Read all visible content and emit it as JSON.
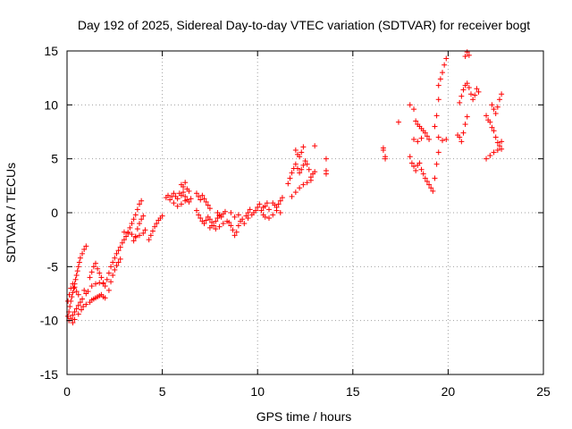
{
  "chart_data": {
    "type": "scatter",
    "title": "Day 192 of 2025, Sidereal Day-to-day VTEC variation (SDTVAR) for receiver bogt",
    "xlabel": "GPS time / hours",
    "ylabel": "SDTVAR / TECUs",
    "xlim": [
      0,
      25
    ],
    "ylim": [
      -15,
      15
    ],
    "x_ticks": [
      0,
      5,
      10,
      15,
      20,
      25
    ],
    "y_ticks": [
      -15,
      -10,
      -5,
      0,
      5,
      10,
      15
    ],
    "x_tick_labels": [
      "0",
      "5",
      "10",
      "15",
      "20",
      "25"
    ],
    "y_tick_labels": [
      "-15",
      "-10",
      "-5",
      "0",
      "5",
      "10",
      "15"
    ],
    "grid": true,
    "marker": "plus",
    "color": "#ff0000",
    "series": [
      {
        "name": "",
        "points": [
          [
            0.05,
            -9.6
          ],
          [
            0.1,
            -9.2
          ],
          [
            0.15,
            -8.7
          ],
          [
            0.2,
            -8.2
          ],
          [
            0.25,
            -7.8
          ],
          [
            0.3,
            -7.4
          ],
          [
            0.35,
            -7.0
          ],
          [
            0.4,
            -6.6
          ],
          [
            0.45,
            -6.2
          ],
          [
            0.5,
            -5.8
          ],
          [
            0.55,
            -5.4
          ],
          [
            0.6,
            -5.0
          ],
          [
            0.65,
            -4.6
          ],
          [
            0.7,
            -4.2
          ],
          [
            0.8,
            -3.8
          ],
          [
            0.9,
            -3.4
          ],
          [
            1.0,
            -3.1
          ],
          [
            0.1,
            -10.0
          ],
          [
            0.2,
            -9.8
          ],
          [
            0.3,
            -9.5
          ],
          [
            0.4,
            -9.2
          ],
          [
            0.5,
            -8.9
          ],
          [
            0.6,
            -8.6
          ],
          [
            0.7,
            -8.3
          ],
          [
            0.8,
            -8.0
          ],
          [
            0.05,
            -8.2
          ],
          [
            0.12,
            -7.6
          ],
          [
            0.2,
            -7.0
          ],
          [
            0.3,
            -6.6
          ],
          [
            0.4,
            -6.9
          ],
          [
            0.5,
            -7.3
          ],
          [
            0.6,
            -7.6
          ],
          [
            0.3,
            -10.2
          ],
          [
            0.4,
            -9.9
          ],
          [
            0.6,
            -9.4
          ],
          [
            0.75,
            -9.0
          ],
          [
            0.85,
            -8.7
          ],
          [
            1.0,
            -8.5
          ],
          [
            0.9,
            -7.2
          ],
          [
            1.0,
            -7.5
          ],
          [
            1.1,
            -7.3
          ],
          [
            1.2,
            -6.0
          ],
          [
            1.3,
            -5.5
          ],
          [
            1.4,
            -5.0
          ],
          [
            1.5,
            -4.7
          ],
          [
            1.6,
            -5.2
          ],
          [
            1.7,
            -5.6
          ],
          [
            1.8,
            -6.0
          ],
          [
            1.9,
            -6.5
          ],
          [
            2.0,
            -6.8
          ],
          [
            1.2,
            -8.3
          ],
          [
            1.3,
            -8.1
          ],
          [
            1.4,
            -8.0
          ],
          [
            1.5,
            -7.9
          ],
          [
            1.6,
            -7.8
          ],
          [
            1.7,
            -7.7
          ],
          [
            1.8,
            -7.6
          ],
          [
            1.9,
            -7.8
          ],
          [
            2.0,
            -7.9
          ],
          [
            1.3,
            -6.8
          ],
          [
            1.5,
            -6.6
          ],
          [
            1.7,
            -6.5
          ],
          [
            1.9,
            -6.6
          ],
          [
            2.1,
            -6.2
          ],
          [
            2.2,
            -5.6
          ],
          [
            2.3,
            -5.0
          ],
          [
            2.4,
            -4.6
          ],
          [
            2.5,
            -4.2
          ],
          [
            2.6,
            -3.8
          ],
          [
            2.7,
            -3.5
          ],
          [
            2.8,
            -3.2
          ],
          [
            2.9,
            -2.8
          ],
          [
            2.2,
            -7.2
          ],
          [
            2.3,
            -6.4
          ],
          [
            2.4,
            -5.8
          ],
          [
            2.5,
            -5.3
          ],
          [
            2.6,
            -4.9
          ],
          [
            2.7,
            -4.6
          ],
          [
            2.8,
            -4.3
          ],
          [
            3.0,
            -2.5
          ],
          [
            3.1,
            -2.2
          ],
          [
            3.2,
            -1.8
          ],
          [
            3.3,
            -1.4
          ],
          [
            3.4,
            -1.0
          ],
          [
            3.5,
            -0.6
          ],
          [
            3.6,
            -0.2
          ],
          [
            3.7,
            0.3
          ],
          [
            3.8,
            0.8
          ],
          [
            3.9,
            1.1
          ],
          [
            3.0,
            -1.8
          ],
          [
            3.2,
            -1.9
          ],
          [
            3.4,
            -2.0
          ],
          [
            3.6,
            -2.2
          ],
          [
            3.8,
            -2.1
          ],
          [
            4.0,
            -1.9
          ],
          [
            4.1,
            -1.6
          ],
          [
            3.5,
            -2.6
          ],
          [
            3.6,
            -2.3
          ],
          [
            3.7,
            -1.5
          ],
          [
            3.8,
            -1.0
          ],
          [
            3.9,
            -0.6
          ],
          [
            4.0,
            -0.3
          ],
          [
            4.3,
            -2.5
          ],
          [
            4.4,
            -2.1
          ],
          [
            4.5,
            -1.7
          ],
          [
            4.6,
            -1.3
          ],
          [
            4.7,
            -1.0
          ],
          [
            4.8,
            -0.7
          ],
          [
            4.9,
            -0.5
          ],
          [
            5.0,
            -0.3
          ],
          [
            5.2,
            1.4
          ],
          [
            5.3,
            1.6
          ],
          [
            5.4,
            1.2
          ],
          [
            5.5,
            1.5
          ],
          [
            5.6,
            1.8
          ],
          [
            5.7,
            1.5
          ],
          [
            5.8,
            1.3
          ],
          [
            5.9,
            1.8
          ],
          [
            6.0,
            1.6
          ],
          [
            6.1,
            1.9
          ],
          [
            6.2,
            1.5
          ],
          [
            6.3,
            1.2
          ],
          [
            6.4,
            1.0
          ],
          [
            6.5,
            1.3
          ],
          [
            5.6,
            0.9
          ],
          [
            5.8,
            0.6
          ],
          [
            6.0,
            0.8
          ],
          [
            6.2,
            1.1
          ],
          [
            6.0,
            2.6
          ],
          [
            6.1,
            2.4
          ],
          [
            6.2,
            2.8
          ],
          [
            6.3,
            2.2
          ],
          [
            6.4,
            2.0
          ],
          [
            6.8,
            1.8
          ],
          [
            6.9,
            1.5
          ],
          [
            7.0,
            1.2
          ],
          [
            7.1,
            1.6
          ],
          [
            7.2,
            1.3
          ],
          [
            7.3,
            1.0
          ],
          [
            7.4,
            0.7
          ],
          [
            7.5,
            0.4
          ],
          [
            6.8,
            0.2
          ],
          [
            6.9,
            -0.2
          ],
          [
            7.0,
            -0.5
          ],
          [
            7.1,
            -0.8
          ],
          [
            7.2,
            -1.0
          ],
          [
            7.3,
            -0.7
          ],
          [
            7.4,
            -0.4
          ],
          [
            7.5,
            -0.6
          ],
          [
            7.6,
            -0.9
          ],
          [
            7.7,
            -1.2
          ],
          [
            7.8,
            -0.8
          ],
          [
            7.9,
            -0.5
          ],
          [
            8.0,
            -0.3
          ],
          [
            7.5,
            -1.4
          ],
          [
            7.6,
            -1.2
          ],
          [
            7.8,
            -1.5
          ],
          [
            8.0,
            -1.3
          ],
          [
            8.2,
            -1.0
          ],
          [
            8.4,
            -0.8
          ],
          [
            7.9,
            0.0
          ],
          [
            8.0,
            -0.2
          ],
          [
            8.1,
            -0.4
          ],
          [
            8.2,
            -0.1
          ],
          [
            8.3,
            0.1
          ],
          [
            8.5,
            -0.9
          ],
          [
            8.6,
            -1.2
          ],
          [
            8.7,
            -1.6
          ],
          [
            8.8,
            -2.1
          ],
          [
            8.9,
            -1.8
          ],
          [
            9.0,
            -1.2
          ],
          [
            8.6,
            0.0
          ],
          [
            8.8,
            -0.4
          ],
          [
            9.0,
            -0.2
          ],
          [
            9.2,
            -0.6
          ],
          [
            9.4,
            -0.3
          ],
          [
            9.5,
            0.0
          ],
          [
            9.6,
            0.3
          ],
          [
            9.8,
            0.0
          ],
          [
            10.0,
            0.5
          ],
          [
            10.2,
            0.2
          ],
          [
            10.4,
            0.6
          ],
          [
            10.6,
            0.3
          ],
          [
            9.1,
            -0.8
          ],
          [
            9.3,
            -1.0
          ],
          [
            9.5,
            -0.5
          ],
          [
            9.7,
            -0.2
          ],
          [
            9.9,
            0.2
          ],
          [
            10.1,
            0.8
          ],
          [
            10.3,
            0.5
          ],
          [
            10.5,
            0.9
          ],
          [
            10.3,
            -0.2
          ],
          [
            10.4,
            -0.4
          ],
          [
            10.6,
            -0.5
          ],
          [
            10.8,
            -0.2
          ],
          [
            11.0,
            0.2
          ],
          [
            11.2,
            0.0
          ],
          [
            10.8,
            0.9
          ],
          [
            10.9,
            0.7
          ],
          [
            11.0,
            0.5
          ],
          [
            11.1,
            0.8
          ],
          [
            11.2,
            1.1
          ],
          [
            11.3,
            1.4
          ],
          [
            11.6,
            2.7
          ],
          [
            11.7,
            3.2
          ],
          [
            11.8,
            3.7
          ],
          [
            11.9,
            4.1
          ],
          [
            12.0,
            4.5
          ],
          [
            12.1,
            4.1
          ],
          [
            12.2,
            3.7
          ],
          [
            12.3,
            4.0
          ],
          [
            12.4,
            4.4
          ],
          [
            12.5,
            4.8
          ],
          [
            12.6,
            4.5
          ],
          [
            12.7,
            4.0
          ],
          [
            11.8,
            1.5
          ],
          [
            12.0,
            1.9
          ],
          [
            12.2,
            2.3
          ],
          [
            12.4,
            2.6
          ],
          [
            12.6,
            2.8
          ],
          [
            12.8,
            3.0
          ],
          [
            12.0,
            5.8
          ],
          [
            12.1,
            5.4
          ],
          [
            12.2,
            5.2
          ],
          [
            12.3,
            5.6
          ],
          [
            12.4,
            6.1
          ],
          [
            12.8,
            3.3
          ],
          [
            12.9,
            3.6
          ],
          [
            13.0,
            3.8
          ],
          [
            13.0,
            6.2
          ],
          [
            13.6,
            3.6
          ],
          [
            13.6,
            3.9
          ],
          [
            13.6,
            5.0
          ],
          [
            16.6,
            6.0
          ],
          [
            16.6,
            5.8
          ],
          [
            16.7,
            5.2
          ],
          [
            16.7,
            5.0
          ],
          [
            17.4,
            8.4
          ],
          [
            18.0,
            10.0
          ],
          [
            18.2,
            9.6
          ],
          [
            18.3,
            8.5
          ],
          [
            18.4,
            8.2
          ],
          [
            18.5,
            8.0
          ],
          [
            18.6,
            7.8
          ],
          [
            18.7,
            7.6
          ],
          [
            18.8,
            7.4
          ],
          [
            18.9,
            7.1
          ],
          [
            19.0,
            6.8
          ],
          [
            18.0,
            5.2
          ],
          [
            18.1,
            4.6
          ],
          [
            18.2,
            4.3
          ],
          [
            18.3,
            3.9
          ],
          [
            18.4,
            4.4
          ],
          [
            18.5,
            4.6
          ],
          [
            18.6,
            4.0
          ],
          [
            18.7,
            3.6
          ],
          [
            18.8,
            3.2
          ],
          [
            18.9,
            2.9
          ],
          [
            19.0,
            2.6
          ],
          [
            19.1,
            2.3
          ],
          [
            19.2,
            2.0
          ],
          [
            18.2,
            6.8
          ],
          [
            18.4,
            6.6
          ],
          [
            18.6,
            6.9
          ],
          [
            19.3,
            3.2
          ],
          [
            19.4,
            4.5
          ],
          [
            19.5,
            5.6
          ],
          [
            19.3,
            8.0
          ],
          [
            19.4,
            9.0
          ],
          [
            19.5,
            10.5
          ],
          [
            19.5,
            11.8
          ],
          [
            19.6,
            12.4
          ],
          [
            19.7,
            13.0
          ],
          [
            19.8,
            13.7
          ],
          [
            19.9,
            14.3
          ],
          [
            19.5,
            7.0
          ],
          [
            19.7,
            6.7
          ],
          [
            19.9,
            6.8
          ],
          [
            20.5,
            7.2
          ],
          [
            20.6,
            7.0
          ],
          [
            20.7,
            6.6
          ],
          [
            20.8,
            7.4
          ],
          [
            20.9,
            8.2
          ],
          [
            21.0,
            8.9
          ],
          [
            20.6,
            10.2
          ],
          [
            20.7,
            10.8
          ],
          [
            20.8,
            11.4
          ],
          [
            20.9,
            11.8
          ],
          [
            21.0,
            12.0
          ],
          [
            21.1,
            11.6
          ],
          [
            21.2,
            11.0
          ],
          [
            21.3,
            10.5
          ],
          [
            21.4,
            10.9
          ],
          [
            21.5,
            11.5
          ],
          [
            21.6,
            11.2
          ],
          [
            20.9,
            14.5
          ],
          [
            21.0,
            14.9
          ],
          [
            21.1,
            14.6
          ],
          [
            22.0,
            9.0
          ],
          [
            22.1,
            8.6
          ],
          [
            22.2,
            8.4
          ],
          [
            22.3,
            7.9
          ],
          [
            22.4,
            7.6
          ],
          [
            22.5,
            7.0
          ],
          [
            22.6,
            6.5
          ],
          [
            22.7,
            6.2
          ],
          [
            22.8,
            6.6
          ],
          [
            22.0,
            5.0
          ],
          [
            22.2,
            5.3
          ],
          [
            22.4,
            5.6
          ],
          [
            22.6,
            5.8
          ],
          [
            22.8,
            5.9
          ],
          [
            22.3,
            10.0
          ],
          [
            22.4,
            9.6
          ],
          [
            22.5,
            9.2
          ],
          [
            22.6,
            9.8
          ],
          [
            22.7,
            10.5
          ],
          [
            22.8,
            11.0
          ]
        ]
      }
    ]
  }
}
